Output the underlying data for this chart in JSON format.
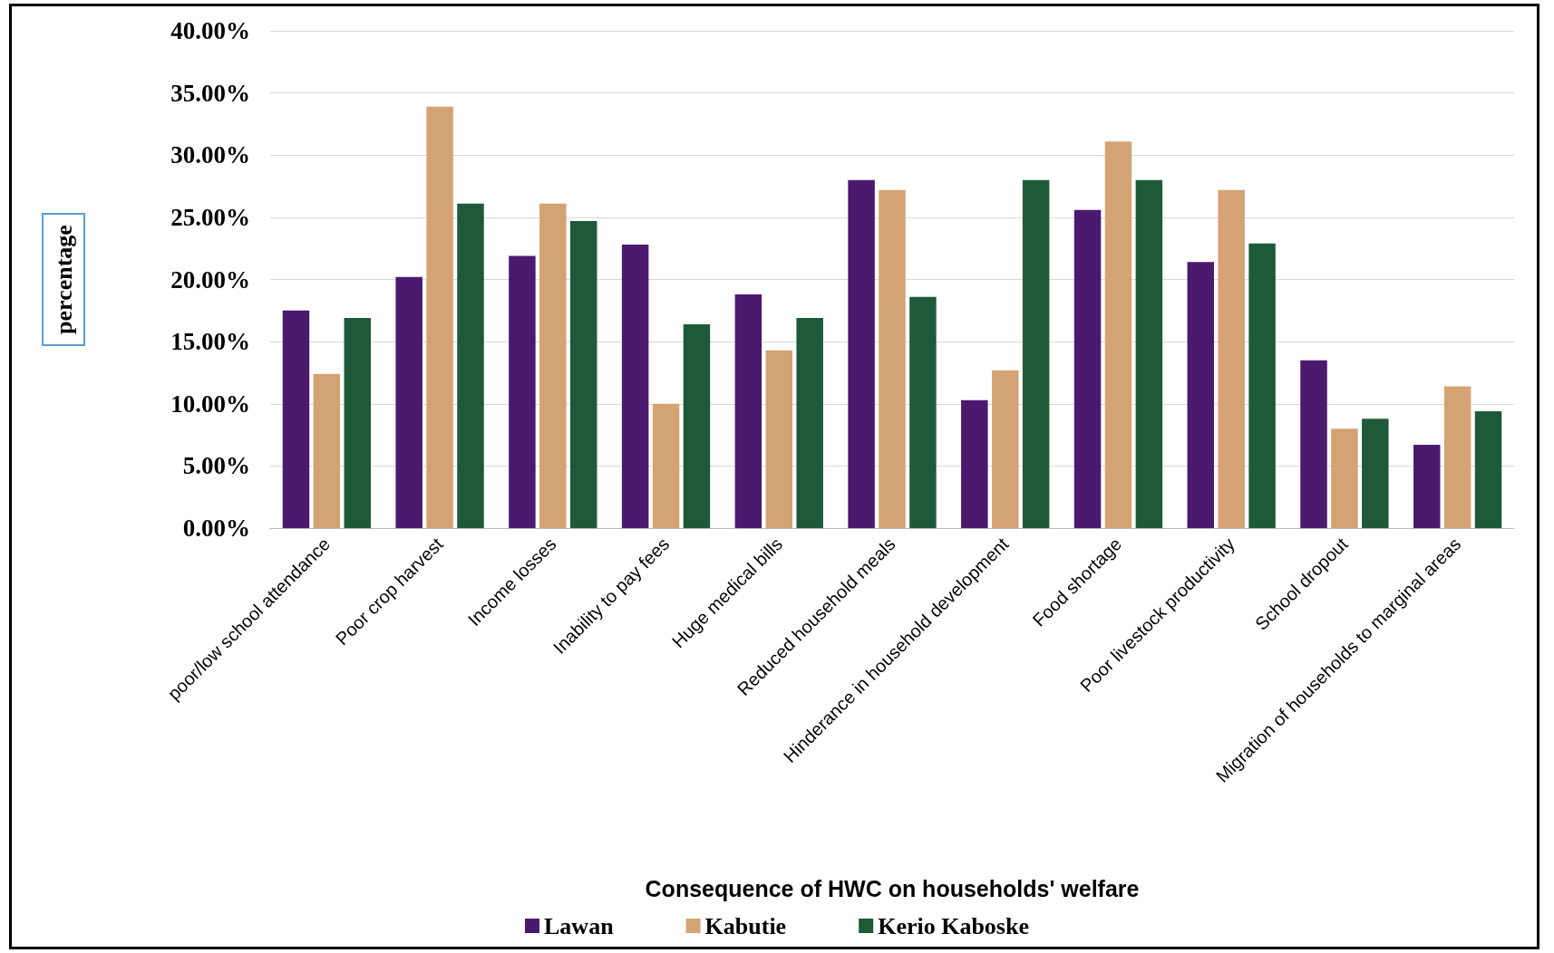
{
  "chart_data": {
    "type": "bar",
    "xlabel": "Consequence of HWC on households' welfare",
    "ylabel": "percentage",
    "categories": [
      "poor/low school attendance",
      "Poor crop harvest",
      "Income losses",
      "Inability to pay fees",
      "Huge medical bills",
      "Reduced household meals",
      "Hinderance in household development",
      "Food shortage",
      "Poor livestock productivity",
      "School dropout",
      "Migration of households to marginal areas"
    ],
    "series": [
      {
        "name": "Lawan",
        "color": "#4b1a6e",
        "values": [
          17.5,
          20.2,
          21.9,
          22.8,
          18.8,
          28.0,
          10.3,
          25.6,
          21.4,
          13.5,
          6.7
        ]
      },
      {
        "name": "Kabutie",
        "color": "#d4a373",
        "values": [
          12.4,
          33.9,
          26.1,
          10.0,
          14.3,
          27.2,
          12.7,
          31.1,
          27.2,
          8.0,
          11.4
        ]
      },
      {
        "name": "Kerio Kaboske",
        "color": "#1e5a3a",
        "values": [
          16.9,
          26.1,
          24.7,
          16.4,
          16.9,
          18.6,
          28.0,
          28.0,
          22.9,
          8.8,
          9.4
        ]
      }
    ],
    "ylim": [
      0,
      40
    ],
    "yticks": [
      {
        "value": 0,
        "label": "0.00%"
      },
      {
        "value": 5,
        "label": "5.00%"
      },
      {
        "value": 10,
        "label": "10.00%"
      },
      {
        "value": 15,
        "label": "15.00%"
      },
      {
        "value": 20,
        "label": "20.00%"
      },
      {
        "value": 25,
        "label": "25.00%"
      },
      {
        "value": 30,
        "label": "30.00%"
      },
      {
        "value": 35,
        "label": "35.00%"
      },
      {
        "value": 40,
        "label": "40.00%"
      }
    ],
    "grid": "y",
    "legend": "bottom"
  }
}
